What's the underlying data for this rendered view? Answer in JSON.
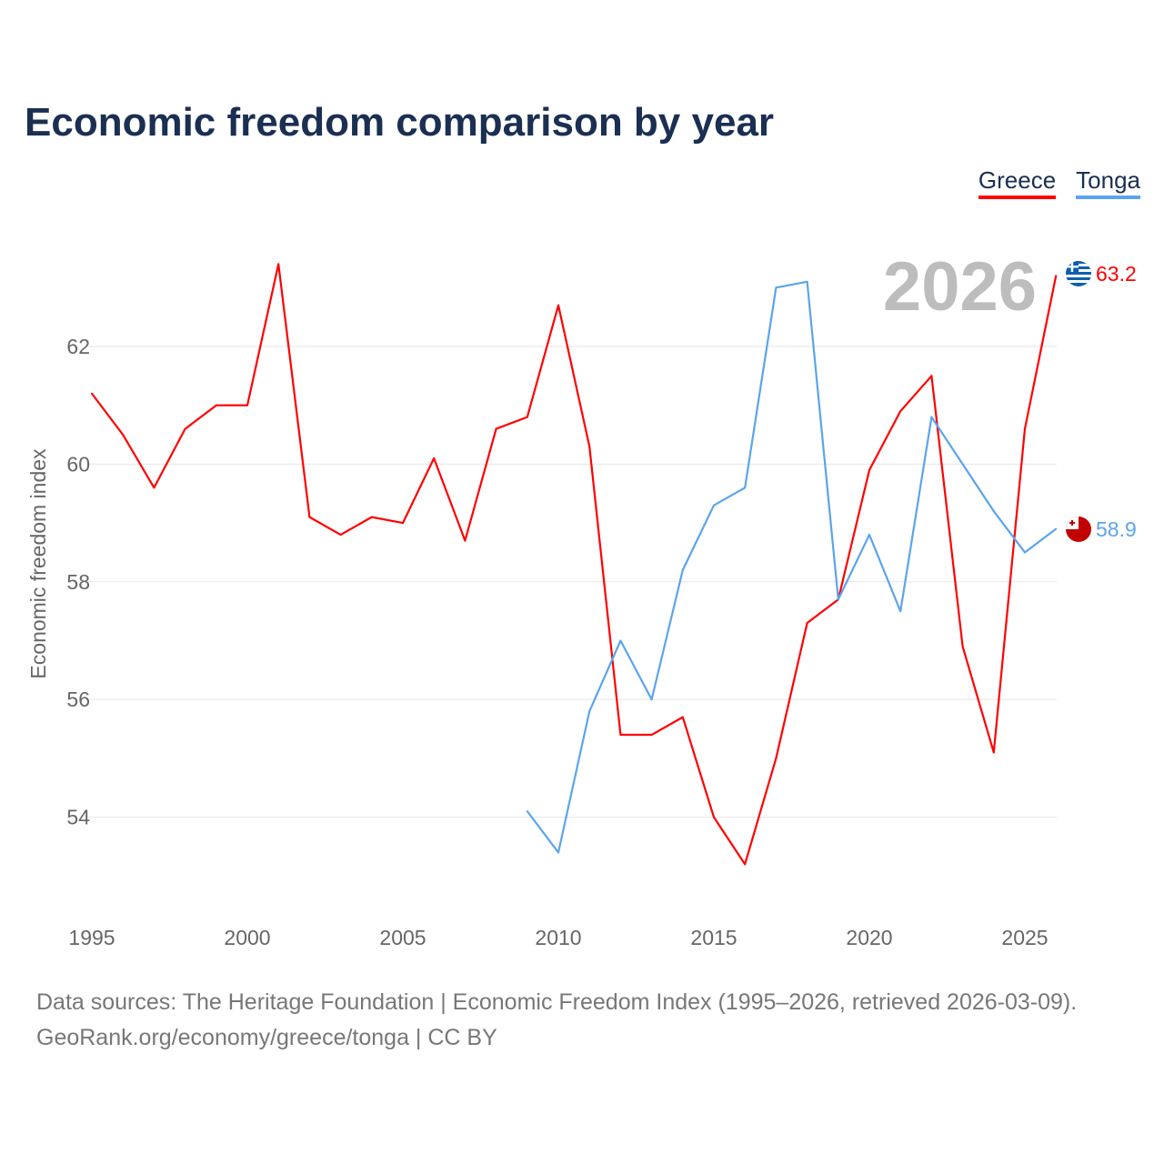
{
  "title": "Economic freedom comparison by year",
  "legend": [
    {
      "label": "Greece",
      "color": "#ff0000"
    },
    {
      "label": "Tonga",
      "color": "#5ba4ec"
    }
  ],
  "year_watermark": "2026",
  "end_labels": {
    "greece": "63.2",
    "tonga": "58.9"
  },
  "footer": {
    "line1": "Data sources: The Heritage Foundation | Economic Freedom Index (1995–2026, retrieved 2026-03-09).",
    "line2": "GeoRank.org/economy/greece/tonga | CC BY"
  },
  "chart_data": {
    "type": "line",
    "title": "Economic freedom comparison by year",
    "xlabel": "",
    "ylabel": "Economic freedom index",
    "xlim": [
      1995,
      2026
    ],
    "ylim": [
      52.5,
      64
    ],
    "xticks": [
      1995,
      2000,
      2005,
      2010,
      2015,
      2020,
      2025
    ],
    "yticks": [
      54,
      56,
      58,
      60,
      62
    ],
    "grid": true,
    "legend_position": "top-right",
    "series": [
      {
        "name": "Greece",
        "color": "#ff0000",
        "x": [
          1995,
          1996,
          1997,
          1998,
          1999,
          2000,
          2001,
          2002,
          2003,
          2004,
          2005,
          2006,
          2007,
          2008,
          2009,
          2010,
          2011,
          2012,
          2013,
          2014,
          2015,
          2016,
          2017,
          2018,
          2019,
          2020,
          2021,
          2022,
          2023,
          2024,
          2025,
          2026
        ],
        "values": [
          61.2,
          60.5,
          59.6,
          60.6,
          61.0,
          61.0,
          63.4,
          59.1,
          58.8,
          59.1,
          59.0,
          60.1,
          58.7,
          60.6,
          60.8,
          62.7,
          60.3,
          55.4,
          55.4,
          55.7,
          54.0,
          53.2,
          55.0,
          57.3,
          57.7,
          59.9,
          60.9,
          61.5,
          56.9,
          55.1,
          60.6,
          63.2
        ]
      },
      {
        "name": "Tonga",
        "color": "#5ba4ec",
        "x": [
          2009,
          2010,
          2011,
          2012,
          2013,
          2014,
          2015,
          2016,
          2017,
          2018,
          2019,
          2020,
          2021,
          2022,
          2023,
          2024,
          2025,
          2026
        ],
        "values": [
          54.1,
          53.4,
          55.8,
          57.0,
          56.0,
          58.2,
          59.3,
          59.6,
          63.0,
          63.1,
          57.7,
          58.8,
          57.5,
          60.8,
          60.0,
          59.2,
          58.5,
          58.9
        ]
      }
    ]
  }
}
